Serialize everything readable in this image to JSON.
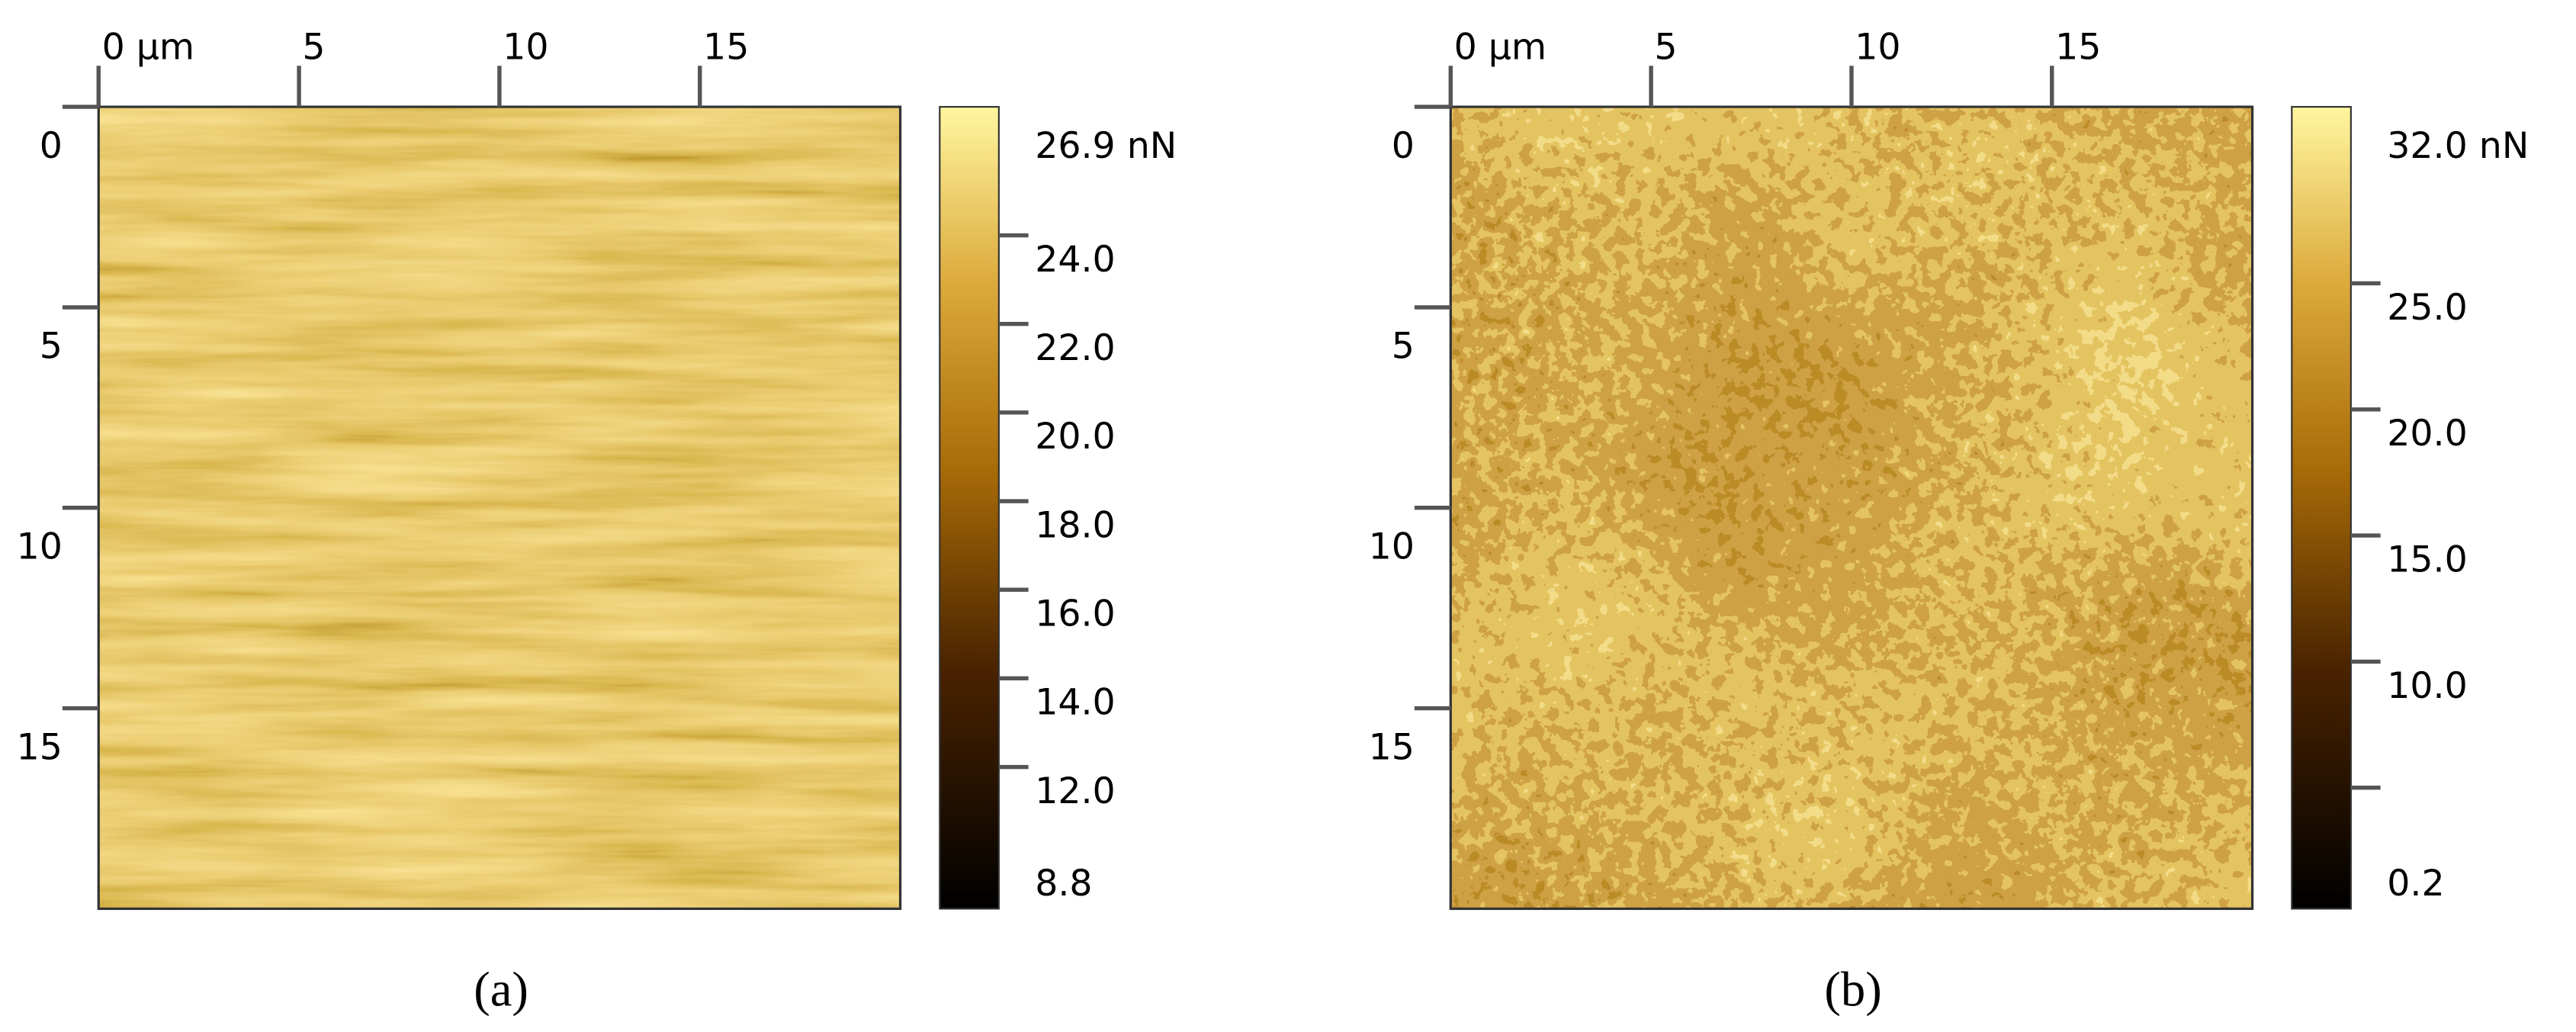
{
  "chart_data": [
    {
      "type": "afm-image",
      "caption": "(a)",
      "xlim": [
        0,
        20
      ],
      "ylim": [
        0,
        20
      ],
      "xticks": [
        {
          "value": 0,
          "label": "0 µm"
        },
        5,
        10,
        15
      ],
      "yticks": [
        0,
        5,
        10,
        15
      ],
      "clim": [
        {
          "value": 8.8,
          "label": "8.8"
        },
        {
          "value": 26.9,
          "label": "26.9 nN"
        }
      ],
      "cticks": [
        {
          "value": 24,
          "label": "24.0"
        },
        {
          "value": 22,
          "label": "22.0"
        },
        {
          "value": 20,
          "label": "20.0"
        },
        {
          "value": 18,
          "label": "18.0"
        },
        {
          "value": 16,
          "label": "16.0"
        },
        {
          "value": 14,
          "label": "14.0"
        },
        {
          "value": 12,
          "label": "12.0"
        }
      ],
      "cminor": []
    },
    {
      "type": "afm-image",
      "caption": "(b)",
      "xlim": [
        0,
        20
      ],
      "ylim": [
        0,
        20
      ],
      "xticks": [
        {
          "value": 0,
          "label": "0 µm"
        },
        5,
        10,
        15
      ],
      "yticks": [
        0,
        5,
        10,
        15
      ],
      "clim": [
        {
          "value": 0.2,
          "label": "0.2"
        },
        {
          "value": 32.0,
          "label": "32.0 nN"
        }
      ],
      "cticks": [
        {
          "value": 25,
          "label": "25.0"
        },
        {
          "value": 20,
          "label": "20.0"
        },
        {
          "value": 15,
          "label": "15.0"
        },
        {
          "value": 10,
          "label": "10.0"
        }
      ],
      "cminor": [
        5
      ]
    }
  ]
}
